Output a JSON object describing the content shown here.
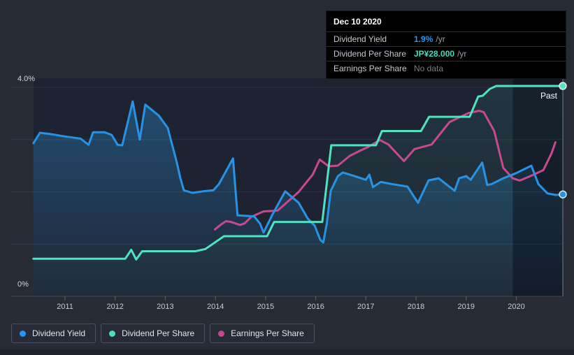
{
  "colors": {
    "page_bg": "#262b36",
    "plot_bg": "#1d2330",
    "blue": "#2893e4",
    "teal": "#4fe2c4",
    "pink": "#c74a8f",
    "legend_blue_dot": "#2196f3",
    "legend_teal_dot": "#4adec2",
    "legend_pink_dot": "#c9488c",
    "tooltip_value_blue": "#2199f1",
    "tooltip_value_teal": "#3fdec0",
    "tooltip_nodata_gray": "#757c85",
    "grid_line": "rgba(255,255,255,0.07)",
    "axis_line": "rgba(255,255,255,0.16)",
    "tick_mark": "rgba(255,255,255,0.25)",
    "axis_text": "#c9ced6",
    "crosshair": "rgba(195,210,228,0.5)",
    "past_overlay": "rgba(4,8,18,0.42)"
  },
  "tooltip": {
    "date": "Dec 10 2020",
    "rows": [
      {
        "label": "Dividend Yield",
        "value": "1.9%",
        "suffix": "/yr",
        "value_color": "#2199f1"
      },
      {
        "label": "Dividend Per Share",
        "value": "JP¥28.000",
        "suffix": "/yr",
        "value_color": "#3fdec0"
      },
      {
        "label": "Earnings Per Share",
        "value": "No data",
        "suffix": "",
        "value_color": "#757c85"
      }
    ]
  },
  "past_label": "Past",
  "axis": {
    "y_labels": [
      {
        "text": "4.0%",
        "value": 4
      },
      {
        "text": "0%",
        "value": 0
      }
    ],
    "years": [
      "2011",
      "2012",
      "2013",
      "2014",
      "2015",
      "2016",
      "2017",
      "2018",
      "2019",
      "2020"
    ]
  },
  "legend": [
    {
      "label": "Dividend Yield",
      "color": "#2196f3"
    },
    {
      "label": "Dividend Per Share",
      "color": "#4adec2"
    },
    {
      "label": "Earnings Per Share",
      "color": "#c9488c"
    }
  ],
  "chart_data": {
    "type": "line",
    "x_axis": "calendar year (decimal)",
    "x_range": [
      2010.35,
      2020.93
    ],
    "ylim_percent": [
      0,
      4.17
    ],
    "ylim_yen": [
      0,
      29
    ],
    "y_gridlines_percent": [
      1,
      2,
      3,
      4
    ],
    "grid": "horizontal only",
    "legend_position": "bottom-left",
    "past_region_start": 2019.93,
    "selected_point": {
      "date": "Dec 10 2020",
      "dividend_yield_pct": 1.9,
      "dividend_per_share_jpy": 28.0,
      "earnings_per_share": null
    },
    "series": [
      {
        "name": "Dividend Yield",
        "unit": "percent",
        "scale": "percent",
        "color": "#2893e4",
        "area_fill": true,
        "points": [
          [
            2010.37,
            2.93
          ],
          [
            2010.5,
            3.13
          ],
          [
            2010.75,
            3.1
          ],
          [
            2011.0,
            3.06
          ],
          [
            2011.31,
            3.02
          ],
          [
            2011.47,
            2.9
          ],
          [
            2011.56,
            3.14
          ],
          [
            2011.79,
            3.14
          ],
          [
            2011.93,
            3.09
          ],
          [
            2012.05,
            2.9
          ],
          [
            2012.14,
            2.89
          ],
          [
            2012.35,
            3.73
          ],
          [
            2012.49,
            3.0
          ],
          [
            2012.6,
            3.67
          ],
          [
            2012.87,
            3.46
          ],
          [
            2013.05,
            3.22
          ],
          [
            2013.23,
            2.56
          ],
          [
            2013.3,
            2.26
          ],
          [
            2013.37,
            2.03
          ],
          [
            2013.54,
            1.98
          ],
          [
            2013.75,
            2.01
          ],
          [
            2013.96,
            2.03
          ],
          [
            2014.07,
            2.15
          ],
          [
            2014.35,
            2.64
          ],
          [
            2014.44,
            1.55
          ],
          [
            2014.77,
            1.53
          ],
          [
            2014.89,
            1.39
          ],
          [
            2014.96,
            1.22
          ],
          [
            2015.14,
            1.57
          ],
          [
            2015.39,
            2.01
          ],
          [
            2015.66,
            1.79
          ],
          [
            2015.84,
            1.49
          ],
          [
            2015.98,
            1.35
          ],
          [
            2016.09,
            1.08
          ],
          [
            2016.15,
            1.03
          ],
          [
            2016.22,
            1.39
          ],
          [
            2016.3,
            2.02
          ],
          [
            2016.44,
            2.3
          ],
          [
            2016.54,
            2.37
          ],
          [
            2016.81,
            2.29
          ],
          [
            2017.0,
            2.23
          ],
          [
            2017.07,
            2.33
          ],
          [
            2017.14,
            2.09
          ],
          [
            2017.3,
            2.19
          ],
          [
            2017.51,
            2.15
          ],
          [
            2017.83,
            2.1
          ],
          [
            2018.04,
            1.79
          ],
          [
            2018.25,
            2.22
          ],
          [
            2018.45,
            2.26
          ],
          [
            2018.77,
            2.02
          ],
          [
            2018.86,
            2.26
          ],
          [
            2019.0,
            2.3
          ],
          [
            2019.09,
            2.23
          ],
          [
            2019.32,
            2.56
          ],
          [
            2019.42,
            2.13
          ],
          [
            2019.51,
            2.15
          ],
          [
            2019.74,
            2.26
          ],
          [
            2019.98,
            2.35
          ],
          [
            2020.3,
            2.5
          ],
          [
            2020.44,
            2.15
          ],
          [
            2020.62,
            1.97
          ],
          [
            2020.79,
            1.94
          ],
          [
            2020.93,
            1.95
          ]
        ]
      },
      {
        "name": "Dividend Per Share",
        "unit": "JPY",
        "scale": "yen",
        "color": "#4fe2c4",
        "area_fill": true,
        "points": [
          [
            2010.37,
            5.0
          ],
          [
            2012.2,
            5.0
          ],
          [
            2012.32,
            6.2
          ],
          [
            2012.42,
            4.9
          ],
          [
            2012.54,
            6.0
          ],
          [
            2013.6,
            6.0
          ],
          [
            2013.8,
            6.3
          ],
          [
            2014.17,
            8.0
          ],
          [
            2015.03,
            8.0
          ],
          [
            2015.17,
            9.9
          ],
          [
            2016.13,
            9.9
          ],
          [
            2016.31,
            20.1
          ],
          [
            2017.2,
            20.1
          ],
          [
            2017.32,
            22.0
          ],
          [
            2018.1,
            22.0
          ],
          [
            2018.26,
            23.9
          ],
          [
            2019.07,
            23.9
          ],
          [
            2019.24,
            26.6
          ],
          [
            2019.33,
            26.7
          ],
          [
            2019.47,
            27.6
          ],
          [
            2019.6,
            28.0
          ],
          [
            2020.93,
            28.0
          ]
        ]
      },
      {
        "name": "Earnings Per Share",
        "unit": "JPY",
        "scale": "yen",
        "color": "#c74a8f",
        "area_fill": false,
        "points": [
          [
            2013.99,
            8.9
          ],
          [
            2014.1,
            9.5
          ],
          [
            2014.21,
            10.0
          ],
          [
            2014.31,
            9.9
          ],
          [
            2014.49,
            9.5
          ],
          [
            2014.58,
            9.7
          ],
          [
            2014.72,
            10.6
          ],
          [
            2014.96,
            11.3
          ],
          [
            2015.24,
            11.4
          ],
          [
            2015.66,
            13.9
          ],
          [
            2015.94,
            16.2
          ],
          [
            2016.08,
            18.2
          ],
          [
            2016.26,
            17.3
          ],
          [
            2016.44,
            17.4
          ],
          [
            2016.68,
            18.7
          ],
          [
            2016.86,
            19.3
          ],
          [
            2017.05,
            19.9
          ],
          [
            2017.28,
            20.8
          ],
          [
            2017.45,
            20.2
          ],
          [
            2017.76,
            18.0
          ],
          [
            2017.97,
            19.6
          ],
          [
            2018.31,
            20.2
          ],
          [
            2018.67,
            23.2
          ],
          [
            2019.05,
            24.4
          ],
          [
            2019.26,
            24.7
          ],
          [
            2019.35,
            24.5
          ],
          [
            2019.56,
            22.0
          ],
          [
            2019.74,
            17.1
          ],
          [
            2019.93,
            15.7
          ],
          [
            2020.07,
            15.4
          ],
          [
            2020.35,
            16.2
          ],
          [
            2020.54,
            16.8
          ],
          [
            2020.7,
            19.0
          ],
          [
            2020.78,
            20.5
          ]
        ]
      }
    ]
  }
}
